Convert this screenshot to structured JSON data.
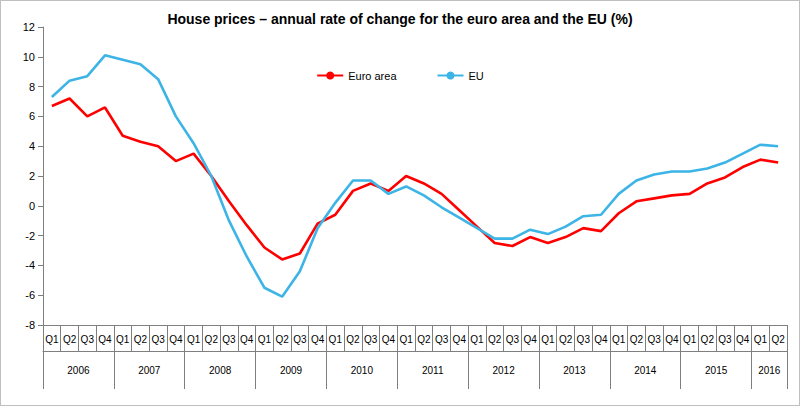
{
  "chart_data": {
    "type": "line",
    "title": "House prices – annual rate of change for the euro area and the EU (%)",
    "categories": [
      "Q1",
      "Q2",
      "Q3",
      "Q4",
      "Q1",
      "Q2",
      "Q3",
      "Q4",
      "Q1",
      "Q2",
      "Q3",
      "Q4",
      "Q1",
      "Q2",
      "Q3",
      "Q4",
      "Q1",
      "Q2",
      "Q3",
      "Q4",
      "Q1",
      "Q2",
      "Q3",
      "Q4",
      "Q1",
      "Q2",
      "Q3",
      "Q4",
      "Q1",
      "Q2",
      "Q3",
      "Q4",
      "Q1",
      "Q2",
      "Q3",
      "Q4",
      "Q1",
      "Q2",
      "Q3",
      "Q4",
      "Q1",
      "Q2"
    ],
    "category_groups": [
      {
        "label": "2006",
        "size": 4
      },
      {
        "label": "2007",
        "size": 4
      },
      {
        "label": "2008",
        "size": 4
      },
      {
        "label": "2009",
        "size": 4
      },
      {
        "label": "2010",
        "size": 4
      },
      {
        "label": "2011",
        "size": 4
      },
      {
        "label": "2012",
        "size": 4
      },
      {
        "label": "2013",
        "size": 4
      },
      {
        "label": "2014",
        "size": 4
      },
      {
        "label": "2015",
        "size": 4
      },
      {
        "label": "2016",
        "size": 2
      }
    ],
    "series": [
      {
        "name": "Euro area",
        "color": "#ff0000",
        "values": [
          6.7,
          7.2,
          6.0,
          6.6,
          4.7,
          4.3,
          4.0,
          3.0,
          3.5,
          2.0,
          0.3,
          -1.3,
          -2.8,
          -3.6,
          -3.2,
          -1.2,
          -0.6,
          1.0,
          1.5,
          1.0,
          2.0,
          1.5,
          0.8,
          -0.3,
          -1.4,
          -2.5,
          -2.7,
          -2.1,
          -2.5,
          -2.1,
          -1.5,
          -1.7,
          -0.5,
          0.3,
          0.5,
          0.7,
          0.8,
          1.5,
          1.9,
          2.6,
          3.1,
          2.9
        ]
      },
      {
        "name": "EU",
        "color": "#3cb4e6",
        "values": [
          7.3,
          8.4,
          8.7,
          10.1,
          9.8,
          9.5,
          8.5,
          6.0,
          4.2,
          2.0,
          -1.0,
          -3.4,
          -5.5,
          -6.1,
          -4.4,
          -1.5,
          0.2,
          1.7,
          1.7,
          0.8,
          1.3,
          0.7,
          -0.1,
          -0.8,
          -1.5,
          -2.2,
          -2.2,
          -1.6,
          -1.9,
          -1.4,
          -0.7,
          -0.6,
          0.8,
          1.7,
          2.1,
          2.3,
          2.3,
          2.5,
          2.9,
          3.5,
          4.1,
          4.0
        ]
      }
    ],
    "ylim": [
      -8,
      12
    ],
    "yticks": [
      -8,
      -6,
      -4,
      -2,
      0,
      2,
      4,
      6,
      8,
      10,
      12
    ],
    "grid": false,
    "legend": "top"
  }
}
